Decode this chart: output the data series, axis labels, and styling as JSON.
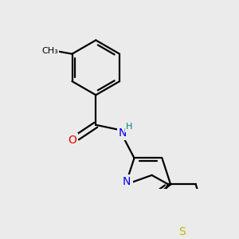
{
  "bg_color": "#ebebeb",
  "atom_colors": {
    "N": "#0000ee",
    "O": "#ee0000",
    "S": "#bbbb00",
    "C": "#000000",
    "H": "#008080"
  },
  "bond_color": "#000000",
  "bond_width": 1.6,
  "font_size_atoms": 10,
  "font_size_H": 8
}
